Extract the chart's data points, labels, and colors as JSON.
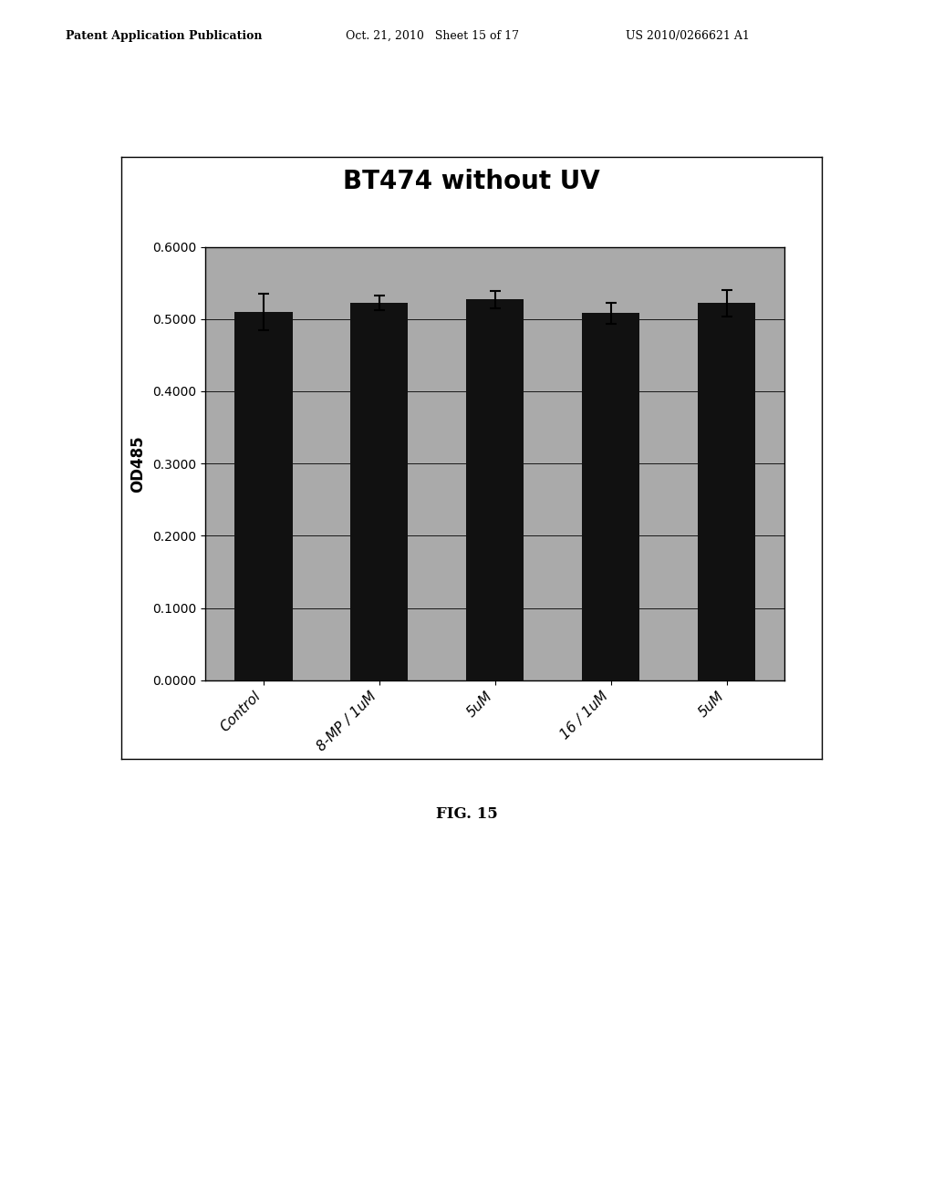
{
  "title": "BT474 without UV",
  "ylabel": "OD485",
  "categories": [
    "Control",
    "8-MP / 1uM",
    "5uM",
    "16 / 1uM",
    "5uM"
  ],
  "values": [
    0.51,
    0.522,
    0.527,
    0.508,
    0.522
  ],
  "errors": [
    0.025,
    0.01,
    0.012,
    0.015,
    0.018
  ],
  "ylim": [
    0.0,
    0.6
  ],
  "yticks": [
    0.0,
    0.1,
    0.2,
    0.3,
    0.4,
    0.5,
    0.6
  ],
  "ytick_labels": [
    "0.0000",
    "0.1000",
    "0.2000",
    "0.3000",
    "0.4000",
    "0.5000",
    "0.6000"
  ],
  "bar_color": "#111111",
  "plot_bg_color": "#aaaaaa",
  "header_line1": "Patent Application Publication",
  "header_line2": "Oct. 21, 2010   Sheet 15 of 17",
  "header_line3": "US 2010/0266621 A1",
  "fig_label": "FIG. 15",
  "title_fontsize": 20,
  "ylabel_fontsize": 12,
  "tick_fontsize": 10,
  "xlabel_fontsize": 11,
  "header_fontsize": 9
}
